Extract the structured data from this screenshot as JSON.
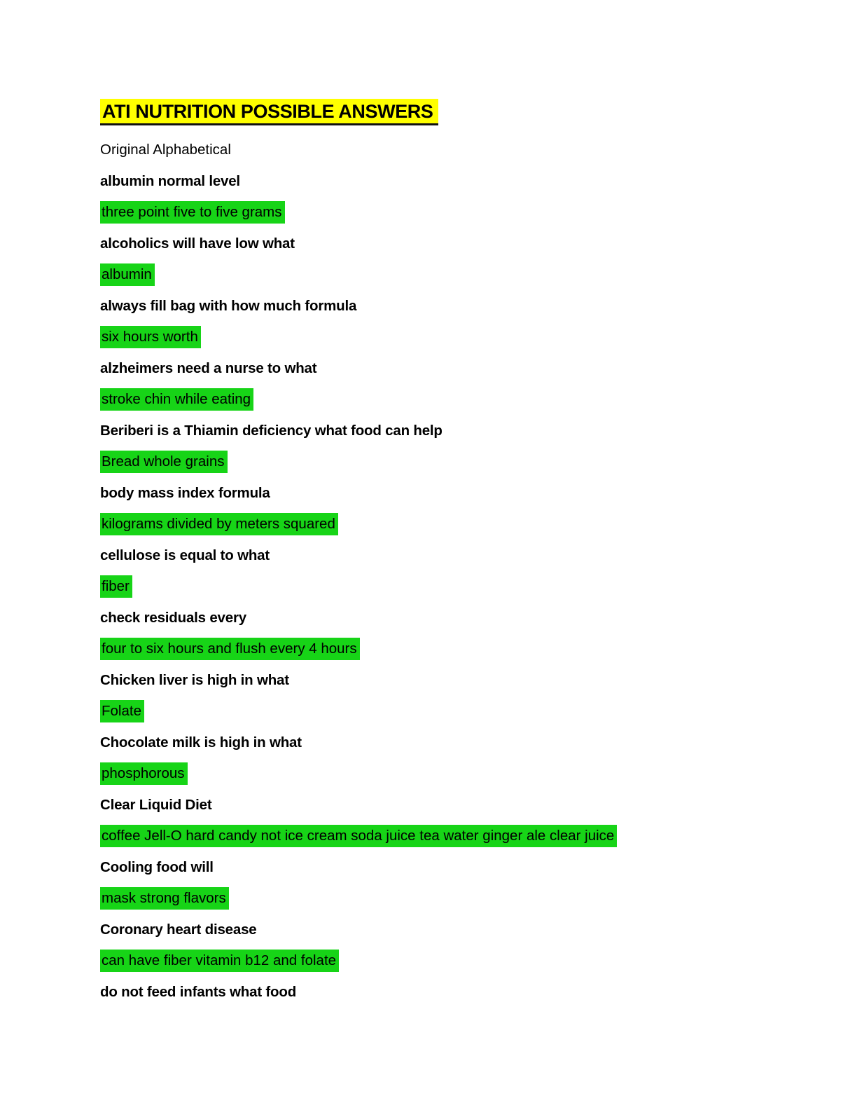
{
  "document": {
    "title": "ATI NUTRITION POSSIBLE ANSWERS",
    "subtitle": "Original Alphabetical",
    "colors": {
      "title_highlight": "#ffff00",
      "answer_highlight": "#17d417",
      "text": "#000000",
      "page_background": "#ffffff"
    },
    "qa": [
      {
        "q": "albumin normal level",
        "a": "three point five to five grams"
      },
      {
        "q": "alcoholics will have low what",
        "a": "albumin"
      },
      {
        "q": "always fill bag with how much formula",
        "a": "six hours worth"
      },
      {
        "q": "alzheimers need a nurse to what",
        "a": "stroke chin while eating"
      },
      {
        "q": "Beriberi is a Thiamin deficiency what food can help",
        "a": "Bread whole grains"
      },
      {
        "q": "body mass index formula",
        "a": "kilograms divided by meters squared"
      },
      {
        "q": "cellulose is equal to what",
        "a": "fiber"
      },
      {
        "q": "check residuals every",
        "a": "four to six hours and flush every 4 hours"
      },
      {
        "q": "Chicken liver is high in what",
        "a": "Folate"
      },
      {
        "q": "Chocolate milk is high in what",
        "a": "phosphorous"
      },
      {
        "q": "Clear Liquid Diet",
        "a": "coffee Jell-O hard candy not ice cream soda juice tea water ginger ale clear juice"
      },
      {
        "q": "Cooling food will",
        "a": "mask strong flavors"
      },
      {
        "q": "Coronary heart disease",
        "a": "can have fiber vitamin b12 and folate"
      },
      {
        "q": "do not feed infants what food",
        "a": null
      }
    ]
  }
}
